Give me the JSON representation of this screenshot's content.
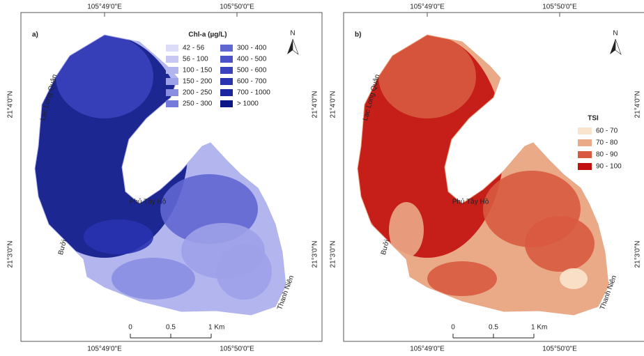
{
  "panels": [
    {
      "label": "a)",
      "coords": {
        "top": [
          "105°49'0\"E",
          "105°50'0\"E"
        ],
        "bottom": [
          "105°49'0\"E",
          "105°50'0\"E"
        ],
        "left": [
          "21°4'0\"N",
          "21°3'0\"N"
        ],
        "right": [
          "21°4'0\"N",
          "21°3'0\"N"
        ]
      },
      "legend": {
        "title": "Chl-a (µg/L)",
        "items": [
          {
            "label": "42 - 56",
            "color": "#dcdcf8"
          },
          {
            "label": "56 - 100",
            "color": "#c6c8f3"
          },
          {
            "label": "100 - 150",
            "color": "#b2b5ee"
          },
          {
            "label": "150 - 200",
            "color": "#9da1e8"
          },
          {
            "label": "200 - 250",
            "color": "#898ee2"
          },
          {
            "label": "250 - 300",
            "color": "#767bdb"
          },
          {
            "label": "300 - 400",
            "color": "#6066d2"
          },
          {
            "label": "400 - 500",
            "color": "#4c53c8"
          },
          {
            "label": "500 - 600",
            "color": "#3a42bd"
          },
          {
            "label": "600 - 700",
            "color": "#2a33b0"
          },
          {
            "label": "700 - 1000",
            "color": "#1c25a0"
          },
          {
            "label": "> 1000",
            "color": "#0c1787"
          }
        ]
      },
      "north": "N",
      "places": [
        "Lạc Long Quân",
        "Phủ Tây Hồ",
        "Bưởi",
        "Thanh Niên"
      ],
      "scale": [
        "0",
        "0.5",
        "1 Km"
      ]
    },
    {
      "label": "b)",
      "coords": {
        "top": [
          "105°49'0\"E",
          "105°50'0\"E"
        ],
        "bottom": [
          "105°49'0\"E",
          "105°50'0\"E"
        ],
        "left": [
          "21°4'0\"N",
          "21°3'0\"N"
        ],
        "right": [
          "21°4'0\"N",
          "21°3'0\"N"
        ]
      },
      "legend": {
        "title": "TSI",
        "items": [
          {
            "label": "60 - 70",
            "color": "#fbe4cd"
          },
          {
            "label": "70 - 80",
            "color": "#eaa987"
          },
          {
            "label": "80 - 90",
            "color": "#d85a40"
          },
          {
            "label": "90 - 100",
            "color": "#c2100e"
          }
        ]
      },
      "north": "N",
      "places": [
        "Lạc Long Quân",
        "Phủ Tây Hồ",
        "Bưởi",
        "Thanh Niên"
      ],
      "scale": [
        "0",
        "0.5",
        "1 Km"
      ]
    }
  ]
}
